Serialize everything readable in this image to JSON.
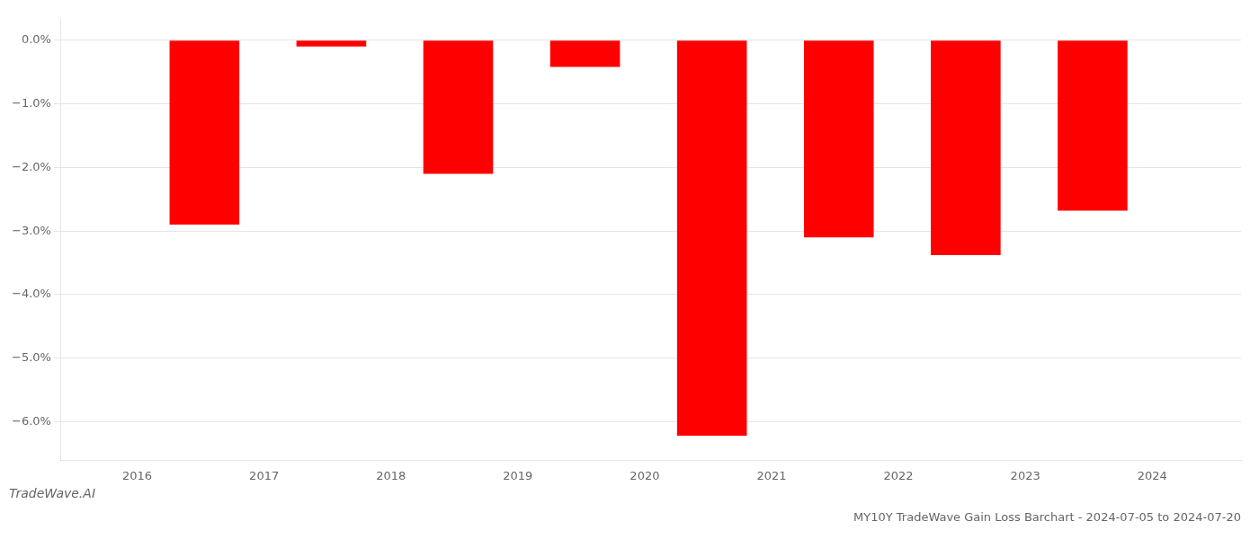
{
  "chart_data": {
    "type": "bar",
    "title": "MY10Y TradeWave Gain Loss Barchart - 2024-07-05 to 2024-07-20",
    "annotations": [
      "TradeWave.AI"
    ],
    "x": [
      2016.53,
      2017.53,
      2018.53,
      2019.53,
      2020.53,
      2021.53,
      2022.53,
      2023.53
    ],
    "values": [
      -2.9,
      -0.1,
      -2.1,
      -0.42,
      -6.22,
      -3.1,
      -3.38,
      -2.68
    ],
    "color": "#ff0000",
    "xlim": [
      2015.4,
      2024.7
    ],
    "xticks": [
      2016,
      2017,
      2018,
      2019,
      2020,
      2021,
      2022,
      2023,
      2024
    ],
    "ylim": [
      -6.6,
      0.35
    ],
    "yticks": [
      {
        "value": 0.0,
        "label": "0.0%"
      },
      {
        "value": -1.0,
        "label": "−1.0%"
      },
      {
        "value": -2.0,
        "label": "−2.0%"
      },
      {
        "value": -3.0,
        "label": "−3.0%"
      },
      {
        "value": -4.0,
        "label": "−4.0%"
      },
      {
        "value": -5.0,
        "label": "−5.0%"
      },
      {
        "value": -6.0,
        "label": "−6.0%"
      }
    ],
    "grid": true
  }
}
